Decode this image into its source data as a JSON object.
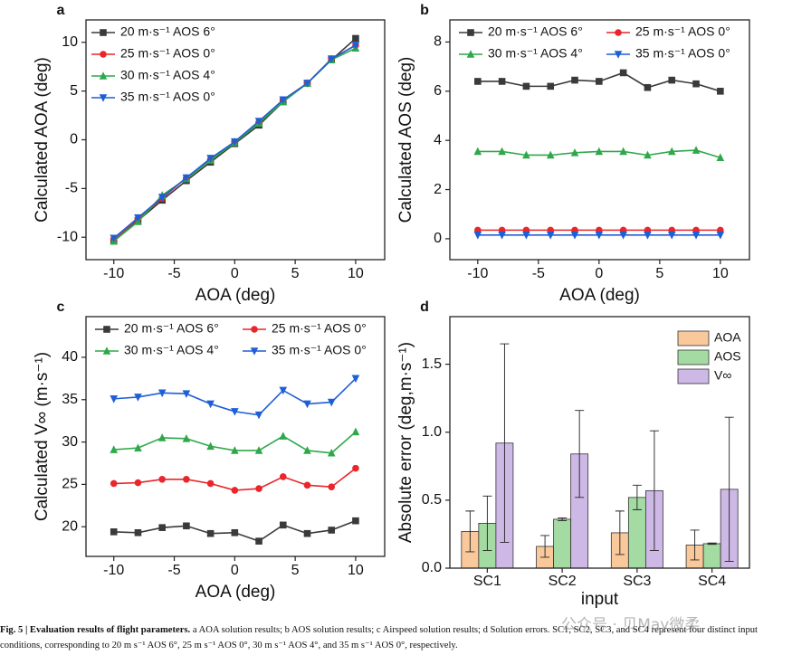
{
  "chart_data": [
    {
      "type": "line",
      "label": "a",
      "x": [
        -10,
        -8,
        -6,
        -4,
        -2,
        0,
        2,
        4,
        6,
        8,
        10
      ],
      "x_label": "AOA (deg)",
      "y_label": "Calculated AOA (deg)",
      "xlim": [
        -12.3,
        12.4
      ],
      "xticks": [
        -10,
        -5,
        0,
        5,
        10
      ],
      "ylim": [
        -12.3,
        12.3
      ],
      "yticks": [
        -10,
        -5,
        0,
        5,
        10
      ],
      "legend": "upper left",
      "legend_columns": 1,
      "series": [
        {
          "name": "20 m·s⁻¹ AOS 6°",
          "color": "#3a3a3a",
          "marker": "square",
          "values": [
            -10.4,
            -8.3,
            -6.2,
            -4.2,
            -2.3,
            -0.4,
            1.5,
            3.9,
            5.8,
            8.2,
            10.4
          ]
        },
        {
          "name": "25 m·s⁻¹ AOS 0°",
          "color": "#e8262b",
          "marker": "circle",
          "values": [
            -10.2,
            -8.1,
            -6.0,
            -3.9,
            -2.0,
            -0.3,
            1.8,
            4.1,
            5.8,
            8.3,
            9.7
          ]
        },
        {
          "name": "30 m·s⁻¹ AOS 4°",
          "color": "#2ea84a",
          "marker": "triangle-up",
          "values": [
            -10.4,
            -8.4,
            -5.7,
            -4.0,
            -2.1,
            -0.3,
            1.7,
            3.9,
            5.8,
            8.2,
            9.4
          ]
        },
        {
          "name": "35 m·s⁻¹ AOS 0°",
          "color": "#1f5fd6",
          "marker": "triangle-down",
          "values": [
            -10.1,
            -8.0,
            -5.9,
            -3.9,
            -1.9,
            -0.2,
            1.9,
            4.1,
            5.8,
            8.3,
            9.7
          ]
        }
      ]
    },
    {
      "type": "line",
      "label": "b",
      "x": [
        -10,
        -8,
        -6,
        -4,
        -2,
        0,
        2,
        4,
        6,
        8,
        10
      ],
      "x_label": "AOA (deg)",
      "y_label": "Calculated AOS (deg)",
      "xlim": [
        -12.3,
        12.4
      ],
      "xticks": [
        -10,
        -5,
        0,
        5,
        10
      ],
      "ylim": [
        -0.85,
        8.9
      ],
      "yticks": [
        0,
        2,
        4,
        6,
        8
      ],
      "legend": "upper center",
      "legend_columns": 2,
      "series": [
        {
          "name": "20 m·s⁻¹ AOS 6°",
          "color": "#3a3a3a",
          "marker": "square",
          "values": [
            6.4,
            6.4,
            6.2,
            6.2,
            6.45,
            6.4,
            6.75,
            6.15,
            6.45,
            6.3,
            6.0
          ]
        },
        {
          "name": "25 m·s⁻¹ AOS 0°",
          "color": "#e8262b",
          "marker": "circle",
          "values": [
            0.35,
            0.35,
            0.35,
            0.35,
            0.35,
            0.35,
            0.35,
            0.35,
            0.35,
            0.35,
            0.35
          ]
        },
        {
          "name": "30 m·s⁻¹ AOS 4°",
          "color": "#2ea84a",
          "marker": "triangle-up",
          "values": [
            3.55,
            3.55,
            3.4,
            3.4,
            3.5,
            3.55,
            3.55,
            3.4,
            3.55,
            3.6,
            3.3
          ]
        },
        {
          "name": "35 m·s⁻¹ AOS 0°",
          "color": "#1f5fd6",
          "marker": "triangle-down",
          "values": [
            0.15,
            0.15,
            0.15,
            0.15,
            0.15,
            0.15,
            0.15,
            0.15,
            0.15,
            0.15,
            0.15
          ]
        }
      ]
    },
    {
      "type": "line",
      "label": "c",
      "x": [
        -10,
        -8,
        -6,
        -4,
        -2,
        0,
        2,
        4,
        6,
        8,
        10
      ],
      "x_label": "AOA (deg)",
      "y_label": "Calculated V∞ (m·s⁻¹)",
      "xlim": [
        -12.3,
        12.4
      ],
      "xticks": [
        -10,
        -5,
        0,
        5,
        10
      ],
      "ylim": [
        16.5,
        44.8
      ],
      "yticks": [
        20,
        25,
        30,
        35,
        40
      ],
      "legend": "upper center",
      "legend_columns": 2,
      "series": [
        {
          "name": "20 m·s⁻¹ AOS 6°",
          "color": "#3a3a3a",
          "marker": "square",
          "values": [
            19.4,
            19.3,
            19.9,
            20.1,
            19.2,
            19.3,
            18.3,
            20.2,
            19.2,
            19.6,
            20.7
          ]
        },
        {
          "name": "25 m·s⁻¹ AOS 0°",
          "color": "#e8262b",
          "marker": "circle",
          "values": [
            25.1,
            25.2,
            25.6,
            25.6,
            25.1,
            24.3,
            24.5,
            25.9,
            24.9,
            24.7,
            26.9
          ]
        },
        {
          "name": "30 m·s⁻¹ AOS 4°",
          "color": "#2ea84a",
          "marker": "triangle-up",
          "values": [
            29.1,
            29.3,
            30.5,
            30.4,
            29.5,
            29.0,
            29.0,
            30.7,
            29.0,
            28.7,
            31.2
          ]
        },
        {
          "name": "35 m·s⁻¹ AOS 0°",
          "color": "#1f5fd6",
          "marker": "triangle-down",
          "values": [
            35.1,
            35.3,
            35.8,
            35.7,
            34.5,
            33.6,
            33.2,
            36.1,
            34.5,
            34.7,
            37.5
          ]
        }
      ]
    },
    {
      "type": "bar",
      "label": "d",
      "categories": [
        "SC1",
        "SC2",
        "SC3",
        "SC4"
      ],
      "x_label": "input",
      "y_label": "Absolute error (deg,m·s⁻¹)",
      "ylim": [
        0,
        1.85
      ],
      "yticks": [
        {
          "value": 0,
          "label": "0.0"
        },
        0.5,
        {
          "value": 1,
          "label": "1.0"
        },
        1.5
      ],
      "legend": "upper right",
      "legend_columns": 1,
      "series": [
        {
          "name": "AOA",
          "color": "#f9c89b",
          "values": [
            0.27,
            0.16,
            0.26,
            0.17
          ],
          "errors": [
            0.15,
            0.08,
            0.16,
            0.11
          ]
        },
        {
          "name": "AOS",
          "color": "#a3dba3",
          "values": [
            0.33,
            0.36,
            0.52,
            0.18
          ],
          "errors": [
            0.2,
            0.01,
            0.09,
            0.005
          ]
        },
        {
          "name": "V∞",
          "color": "#cdb8e6",
          "values": [
            0.92,
            0.84,
            0.57,
            0.58
          ],
          "errors": [
            0.73,
            0.32,
            0.44,
            0.53
          ]
        }
      ]
    }
  ],
  "caption_title": "Fig. 5 | Evaluation results of flight parameters.",
  "caption_text": "a AOA solution results; b AOS solution results; c Airspeed solution results; d Solution errors. SC1, SC2, SC3, and SC4 represent four distinct input conditions, corresponding to 20 m s⁻¹ AOS 6°, 25 m s⁻¹ AOS 0°, 30 m s⁻¹ AOS 4°, and 35 m s⁻¹ AOS 0°, respectively.",
  "watermark": "公众号 · 贝May微柔"
}
